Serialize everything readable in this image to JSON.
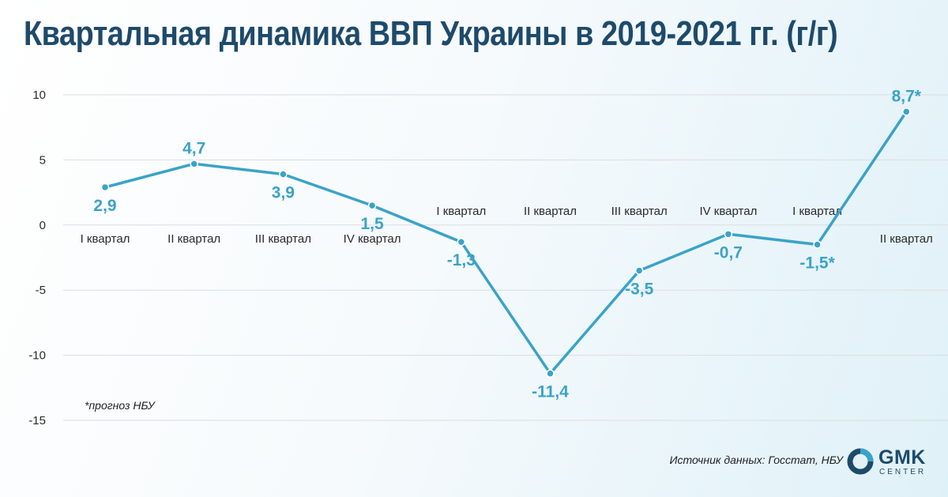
{
  "title": "Квартальная динамика ВВП Украины в 2019-2021 гг. (г/г)",
  "footnote": "*прогноз НБУ",
  "source": "Источник данных: Госстат, НБУ",
  "logo": {
    "name": "GMK",
    "sub": "CENTER"
  },
  "colors": {
    "line": "#3aa3c8",
    "title": "#1e4a6b",
    "grid": "#d9dde0"
  },
  "chart_data": {
    "type": "line",
    "title": "Квартальная динамика ВВП Украины в 2019-2021 гг. (г/г)",
    "xlabel": "",
    "ylabel": "",
    "ylim": [
      -15,
      10
    ],
    "yticks": [
      "10",
      "5",
      "0",
      "-5",
      "-10",
      "-15"
    ],
    "grid": true,
    "categories": [
      "I квартал",
      "II квартал",
      "III квартал",
      "IV квартал",
      "I квартал",
      "II квартал",
      "III квартал",
      "IV квартал",
      "I квартал",
      "II квартал"
    ],
    "values": [
      2.9,
      4.7,
      3.9,
      1.5,
      -1.3,
      -11.4,
      -3.5,
      -0.7,
      -1.5,
      8.7
    ],
    "value_labels": [
      "2,9",
      "4,7",
      "3,9",
      "1,5",
      "-1,3",
      "-11,4",
      "-3,5",
      "-0,7",
      "-1,5*",
      "8,7*"
    ]
  }
}
